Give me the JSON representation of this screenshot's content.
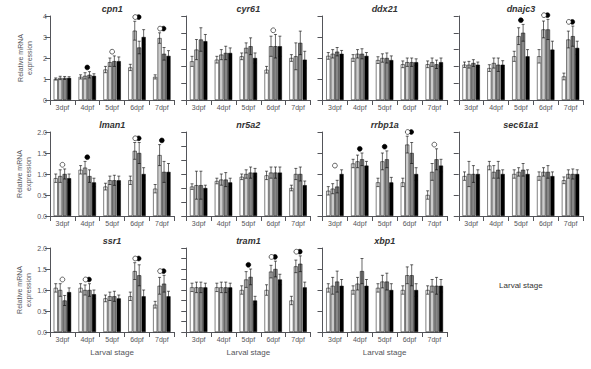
{
  "chart_data": [
    {
      "type": "bar",
      "title": "cpn1",
      "categories": [
        "3dpf",
        "4dpf",
        "5dpf",
        "6dpf",
        "7dpf"
      ],
      "series": [
        {
          "color": "white",
          "values": [
            1.0,
            1.1,
            1.45,
            1.55,
            1.1
          ],
          "errors": [
            0.05,
            0.1,
            0.15,
            0.15,
            0.1
          ]
        },
        {
          "color": "#cccccc",
          "values": [
            1.05,
            1.15,
            1.8,
            3.3,
            2.95
          ],
          "errors": [
            0.08,
            0.15,
            0.2,
            0.45,
            0.25
          ]
        },
        {
          "color": "#888888",
          "values": [
            1.05,
            1.2,
            1.85,
            2.5,
            2.2
          ],
          "errors": [
            0.07,
            0.15,
            0.25,
            0.3,
            0.3
          ]
        },
        {
          "color": "black",
          "values": [
            1.05,
            1.15,
            1.85,
            3.0,
            2.1
          ],
          "errors": [
            0.06,
            0.1,
            0.2,
            0.35,
            0.25
          ]
        }
      ],
      "sig_filled": [
        false,
        true,
        false,
        true,
        true
      ],
      "sig_open": [
        false,
        false,
        true,
        true,
        true
      ],
      "ylim": [
        0,
        4.0
      ],
      "yticks": [
        0,
        1,
        2,
        3,
        4
      ],
      "ylabel": "Relative mRNA\nexpression",
      "grid": false
    },
    {
      "type": "bar",
      "title": "cyr61",
      "categories": [
        "3dpf",
        "4dpf",
        "5dpf",
        "6dpf",
        "7dpf"
      ],
      "series": [
        {
          "color": "white",
          "values": [
            1.15,
            1.2,
            1.3,
            0.9,
            1.25
          ],
          "errors": [
            0.15,
            0.1,
            0.1,
            0.1,
            0.1
          ]
        },
        {
          "color": "#cccccc",
          "values": [
            1.5,
            1.35,
            1.55,
            1.6,
            1.3
          ],
          "errors": [
            0.3,
            0.15,
            0.15,
            0.3,
            0.4
          ]
        },
        {
          "color": "#888888",
          "values": [
            1.8,
            1.4,
            1.6,
            1.6,
            1.7
          ],
          "errors": [
            0.35,
            0.2,
            0.25,
            0.35,
            0.35
          ]
        },
        {
          "color": "black",
          "values": [
            1.75,
            1.4,
            1.25,
            1.6,
            1.2
          ],
          "errors": [
            0.2,
            0.15,
            0.15,
            0.3,
            0.25
          ]
        }
      ],
      "sig_filled": [
        false,
        false,
        false,
        false,
        false
      ],
      "sig_open": [
        false,
        false,
        false,
        true,
        false
      ],
      "ylim": [
        0,
        2.5
      ],
      "yticks": [
        0,
        0.5,
        1.0,
        1.5,
        2.0,
        2.5
      ],
      "tick_labels": "x",
      "grid": false
    },
    {
      "type": "bar",
      "title": "ddx21",
      "categories": [
        "3dpf",
        "4dpf",
        "5dpf",
        "6dpf",
        "7dpf"
      ],
      "series": [
        {
          "color": "white",
          "values": [
            1.05,
            1.0,
            0.95,
            0.85,
            0.85
          ],
          "errors": [
            0.08,
            0.08,
            0.08,
            0.08,
            0.08
          ]
        },
        {
          "color": "#cccccc",
          "values": [
            1.1,
            1.1,
            1.0,
            0.9,
            0.9
          ],
          "errors": [
            0.1,
            0.1,
            0.1,
            0.1,
            0.1
          ]
        },
        {
          "color": "#888888",
          "values": [
            1.15,
            1.1,
            1.0,
            0.9,
            0.85
          ],
          "errors": [
            0.1,
            0.12,
            0.12,
            0.1,
            0.1
          ]
        },
        {
          "color": "black",
          "values": [
            1.1,
            1.05,
            0.95,
            0.9,
            0.9
          ],
          "errors": [
            0.08,
            0.08,
            0.1,
            0.08,
            0.1
          ]
        }
      ],
      "sig_filled": [
        false,
        false,
        false,
        false,
        false
      ],
      "sig_open": [
        false,
        false,
        false,
        false,
        false
      ],
      "ylim": [
        0,
        2.0
      ],
      "yticks": [
        0,
        0.5,
        1.0,
        1.5,
        2.0
      ],
      "tick_labels": "x",
      "grid": false
    },
    {
      "type": "bar",
      "title": "dnajc3",
      "categories": [
        "3dpf",
        "4dpf",
        "5dpf",
        "6dpf",
        "7dpf"
      ],
      "series": [
        {
          "color": "white",
          "values": [
            1.05,
            0.95,
            1.3,
            1.3,
            0.7
          ],
          "errors": [
            0.08,
            0.1,
            0.15,
            0.2,
            0.1
          ]
        },
        {
          "color": "#cccccc",
          "values": [
            1.05,
            1.1,
            1.9,
            2.1,
            1.8
          ],
          "errors": [
            0.1,
            0.15,
            0.25,
            0.25,
            0.25
          ]
        },
        {
          "color": "#888888",
          "values": [
            1.1,
            1.05,
            2.0,
            2.1,
            1.9
          ],
          "errors": [
            0.1,
            0.2,
            0.25,
            0.3,
            0.3
          ]
        },
        {
          "color": "black",
          "values": [
            1.05,
            1.05,
            1.3,
            1.5,
            1.55
          ],
          "errors": [
            0.08,
            0.12,
            0.2,
            0.25,
            0.2
          ]
        }
      ],
      "sig_filled": [
        false,
        false,
        true,
        true,
        true
      ],
      "sig_open": [
        false,
        false,
        false,
        true,
        true
      ],
      "ylim": [
        0,
        2.5
      ],
      "yticks": [
        0,
        0.5,
        1.0,
        1.5,
        2.0,
        2.5
      ],
      "tick_labels": "x",
      "grid": false
    },
    {
      "type": "bar",
      "title": "lman1",
      "categories": [
        "3dpf",
        "4dpf",
        "5dpf",
        "6dpf",
        "7dpf"
      ],
      "series": [
        {
          "color": "white",
          "values": [
            0.9,
            1.1,
            0.7,
            0.85,
            0.65
          ],
          "errors": [
            0.1,
            0.1,
            0.08,
            0.1,
            0.1
          ]
        },
        {
          "color": "#cccccc",
          "values": [
            0.95,
            1.15,
            0.85,
            1.55,
            1.45
          ],
          "errors": [
            0.15,
            0.15,
            0.1,
            0.2,
            0.25
          ]
        },
        {
          "color": "#888888",
          "values": [
            1.0,
            0.95,
            0.85,
            1.5,
            1.05
          ],
          "errors": [
            0.12,
            0.15,
            0.12,
            0.25,
            0.25
          ]
        },
        {
          "color": "black",
          "values": [
            0.9,
            0.8,
            0.85,
            1.0,
            1.05
          ],
          "errors": [
            0.1,
            0.1,
            0.1,
            0.15,
            0.2
          ]
        }
      ],
      "sig_filled": [
        false,
        true,
        false,
        true,
        true
      ],
      "sig_open": [
        true,
        false,
        false,
        true,
        false
      ],
      "ylim": [
        0,
        2.0
      ],
      "yticks": [
        {
          "value": 0,
          "label": "0.0"
        },
        0.5,
        {
          "value": 1,
          "label": "1.0"
        },
        1.5,
        {
          "value": 2,
          "label": "2.0"
        }
      ],
      "ylabel": "Relative mRNA\nexpression",
      "grid": false
    },
    {
      "type": "bar",
      "title": "nr5a2",
      "categories": [
        "3dpf",
        "4dpf",
        "5dpf",
        "6dpf",
        "7dpf"
      ],
      "series": [
        {
          "color": "white",
          "values": [
            1.05,
            1.25,
            1.4,
            1.45,
            1.0
          ],
          "errors": [
            0.1,
            0.1,
            0.1,
            0.15,
            0.1
          ]
        },
        {
          "color": "#cccccc",
          "values": [
            1.1,
            1.3,
            1.5,
            1.55,
            1.5
          ],
          "errors": [
            0.5,
            0.2,
            0.15,
            0.2,
            0.2
          ]
        },
        {
          "color": "#888888",
          "values": [
            1.1,
            1.3,
            1.55,
            1.55,
            1.5
          ],
          "errors": [
            0.5,
            0.25,
            0.2,
            0.2,
            0.25
          ]
        },
        {
          "color": "black",
          "values": [
            1.0,
            1.2,
            1.55,
            1.55,
            1.1
          ],
          "errors": [
            0.1,
            0.15,
            0.15,
            0.2,
            0.15
          ]
        }
      ],
      "sig_filled": [
        false,
        false,
        false,
        false,
        false
      ],
      "sig_open": [
        false,
        false,
        false,
        false,
        false
      ],
      "ylim": [
        0,
        3.0
      ],
      "yticks": [
        0,
        0.5,
        1.0,
        1.5,
        2.0,
        2.5,
        3.0
      ],
      "tick_labels": "x",
      "grid": false
    },
    {
      "type": "bar",
      "title": "rrbp1a",
      "categories": [
        "3dpf",
        "4dpf",
        "5dpf",
        "6dpf",
        "7dpf"
      ],
      "series": [
        {
          "color": "white",
          "values": [
            0.6,
            1.25,
            0.8,
            0.8,
            0.5
          ],
          "errors": [
            0.1,
            0.1,
            0.1,
            0.1,
            0.1
          ]
        },
        {
          "color": "#cccccc",
          "values": [
            0.65,
            1.3,
            1.3,
            1.7,
            1.05
          ],
          "errors": [
            0.12,
            0.15,
            0.2,
            0.2,
            0.2
          ]
        },
        {
          "color": "#888888",
          "values": [
            0.7,
            1.35,
            1.35,
            1.5,
            1.35
          ],
          "errors": [
            0.15,
            0.15,
            0.2,
            0.25,
            0.25
          ]
        },
        {
          "color": "black",
          "values": [
            1.0,
            1.2,
            0.8,
            1.0,
            1.2
          ],
          "errors": [
            0.1,
            0.1,
            0.12,
            0.15,
            0.15
          ]
        }
      ],
      "sig_filled": [
        false,
        true,
        true,
        true,
        false
      ],
      "sig_open": [
        true,
        false,
        false,
        true,
        true
      ],
      "ylim": [
        0,
        2.0
      ],
      "yticks": [
        0,
        0.5,
        1.0,
        1.5,
        2.0
      ],
      "tick_labels": "x",
      "grid": false
    },
    {
      "type": "bar",
      "title": "sec61a1",
      "categories": [
        "3dpf",
        "4dpf",
        "5dpf",
        "6dpf",
        "7dpf"
      ],
      "series": [
        {
          "color": "white",
          "values": [
            0.95,
            1.2,
            1.0,
            0.95,
            0.85
          ],
          "errors": [
            0.1,
            0.1,
            0.1,
            0.1,
            0.08
          ]
        },
        {
          "color": "#cccccc",
          "values": [
            1.0,
            1.05,
            1.05,
            1.05,
            1.0
          ],
          "errors": [
            0.3,
            0.15,
            0.1,
            0.1,
            0.1
          ]
        },
        {
          "color": "#888888",
          "values": [
            1.0,
            1.1,
            1.1,
            1.05,
            1.0
          ],
          "errors": [
            0.2,
            0.2,
            0.15,
            0.15,
            0.12
          ]
        },
        {
          "color": "black",
          "values": [
            1.0,
            1.0,
            1.0,
            0.95,
            1.0
          ],
          "errors": [
            0.1,
            0.1,
            0.1,
            0.1,
            0.1
          ]
        }
      ],
      "sig_filled": [
        false,
        false,
        false,
        false,
        false
      ],
      "sig_open": [
        false,
        false,
        false,
        false,
        false
      ],
      "ylim": [
        0,
        2.0
      ],
      "yticks": [
        0,
        0.5,
        1.0,
        1.5,
        2.0
      ],
      "tick_labels": "x",
      "grid": false
    },
    {
      "type": "bar",
      "title": "ssr1",
      "categories": [
        "3dpf",
        "4dpf",
        "5dpf",
        "6dpf",
        "7dpf"
      ],
      "series": [
        {
          "color": "white",
          "values": [
            1.05,
            1.05,
            0.8,
            0.85,
            0.65
          ],
          "errors": [
            0.1,
            0.1,
            0.08,
            0.1,
            0.08
          ]
        },
        {
          "color": "#cccccc",
          "values": [
            1.0,
            1.0,
            0.85,
            1.45,
            1.1
          ],
          "errors": [
            0.15,
            0.12,
            0.1,
            0.2,
            0.2
          ]
        },
        {
          "color": "#888888",
          "values": [
            0.75,
            1.0,
            0.85,
            1.35,
            1.15
          ],
          "errors": [
            0.12,
            0.15,
            0.12,
            0.25,
            0.2
          ]
        },
        {
          "color": "black",
          "values": [
            0.95,
            0.9,
            0.8,
            0.85,
            0.85
          ],
          "errors": [
            0.1,
            0.1,
            0.08,
            0.15,
            0.12
          ]
        }
      ],
      "sig_filled": [
        false,
        true,
        false,
        true,
        true
      ],
      "sig_open": [
        true,
        true,
        false,
        true,
        true
      ],
      "ylim": [
        0,
        2.0
      ],
      "yticks": [
        {
          "value": 0,
          "label": "0.0"
        },
        0.5,
        {
          "value": 1,
          "label": "1.0"
        },
        1.5,
        {
          "value": 2,
          "label": "2.0"
        }
      ],
      "ylabel": "Relative mRNA\nexpression",
      "xlabel": "Larval stage",
      "grid": false
    },
    {
      "type": "bar",
      "title": "tram1",
      "categories": [
        "3dpf",
        "4dpf",
        "5dpf",
        "6dpf",
        "7dpf"
      ],
      "series": [
        {
          "color": "white",
          "values": [
            0.85,
            0.85,
            0.8,
            0.8,
            0.6
          ],
          "errors": [
            0.08,
            0.08,
            0.08,
            0.1,
            0.08
          ]
        },
        {
          "color": "#cccccc",
          "values": [
            0.85,
            0.85,
            1.0,
            1.15,
            1.25
          ],
          "errors": [
            0.1,
            0.1,
            0.15,
            0.12,
            0.12
          ]
        },
        {
          "color": "#888888",
          "values": [
            0.85,
            0.85,
            1.05,
            1.2,
            1.3
          ],
          "errors": [
            0.1,
            0.1,
            0.15,
            0.15,
            0.15
          ]
        },
        {
          "color": "black",
          "values": [
            0.85,
            0.85,
            0.6,
            1.0,
            0.85
          ],
          "errors": [
            0.08,
            0.08,
            0.08,
            0.1,
            0.1
          ]
        }
      ],
      "sig_filled": [
        false,
        false,
        true,
        true,
        true
      ],
      "sig_open": [
        false,
        false,
        false,
        true,
        true
      ],
      "ylim": [
        0,
        1.6
      ],
      "yticks": [
        0,
        0.2,
        0.4,
        0.6,
        0.8,
        1.0,
        1.2,
        1.4,
        1.6
      ],
      "tick_labels": "x",
      "xlabel": "Larval stage",
      "grid": false
    },
    {
      "type": "bar",
      "title": "xbp1",
      "categories": [
        "3dpf",
        "4dpf",
        "5dpf",
        "6dpf",
        "7dpf"
      ],
      "series": [
        {
          "color": "white",
          "values": [
            1.05,
            1.0,
            1.05,
            1.0,
            1.0
          ],
          "errors": [
            0.1,
            0.1,
            0.1,
            0.1,
            0.1
          ]
        },
        {
          "color": "#cccccc",
          "values": [
            1.1,
            1.15,
            1.2,
            1.35,
            1.1
          ],
          "errors": [
            0.2,
            0.15,
            0.15,
            0.2,
            0.15
          ]
        },
        {
          "color": "#888888",
          "values": [
            1.2,
            1.45,
            1.2,
            1.35,
            1.1
          ],
          "errors": [
            0.25,
            0.3,
            0.2,
            0.25,
            0.2
          ]
        },
        {
          "color": "black",
          "values": [
            1.1,
            1.1,
            1.0,
            1.0,
            1.1
          ],
          "errors": [
            0.15,
            0.15,
            0.15,
            0.15,
            0.15
          ]
        }
      ],
      "sig_filled": [
        false,
        false,
        false,
        false,
        false
      ],
      "sig_open": [
        false,
        false,
        false,
        false,
        false
      ],
      "ylim": [
        0,
        2.0
      ],
      "yticks": [
        0,
        0.5,
        1.0,
        1.5,
        2.0
      ],
      "tick_labels": "x",
      "xlabel": "Larval stage",
      "annotations": [
        "Larval stage"
      ],
      "grid": false
    }
  ]
}
